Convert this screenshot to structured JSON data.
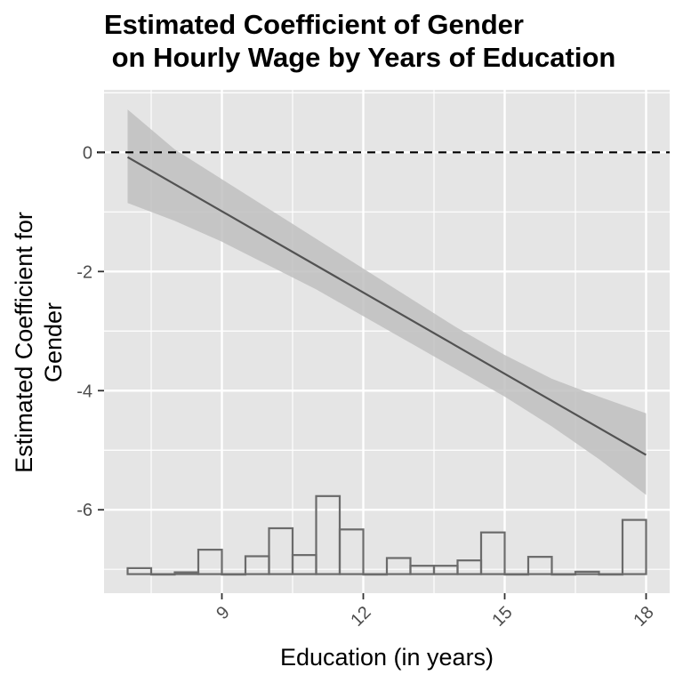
{
  "chart_data": {
    "type": "line",
    "title": "Estimated Coefficient of Gender\n on Hourly Wage by Years of Education",
    "title_lines": [
      "Estimated Coefficient of Gender",
      " on Hourly Wage by Years of Education"
    ],
    "xlabel": "Education (in years)",
    "ylabel_lines": [
      "Estimated Coefficient for",
      "Gender"
    ],
    "xlim": [
      6.5,
      18.5
    ],
    "ylim": [
      -7.4,
      1.05
    ],
    "x_ticks": [
      9,
      12,
      15,
      18
    ],
    "x_tick_labels": [
      "9",
      "12",
      "15",
      "18"
    ],
    "y_ticks": [
      0,
      -2,
      -4,
      -6
    ],
    "y_tick_labels": [
      "0",
      "-2",
      "-4",
      "-6"
    ],
    "grid": true,
    "reference_line": {
      "y": 0,
      "style": "dashed"
    },
    "series": [
      {
        "values": [
          {
            "x": 7,
            "y": -0.08
          },
          {
            "x": 18,
            "y": -5.08
          }
        ]
      }
    ],
    "confidence_band": {
      "x": [
        7,
        8,
        9,
        10,
        11,
        12,
        13,
        14,
        15,
        16,
        17,
        18
      ],
      "lower": [
        -0.85,
        -1.15,
        -1.5,
        -1.9,
        -2.3,
        -2.75,
        -3.2,
        -3.65,
        -4.1,
        -4.6,
        -5.15,
        -5.75
      ],
      "upper": [
        0.72,
        0.05,
        -0.45,
        -0.95,
        -1.45,
        -1.95,
        -2.45,
        -2.95,
        -3.4,
        -3.8,
        -4.1,
        -4.38
      ]
    },
    "histogram": {
      "bin_start": 7,
      "bin_width": 0.5,
      "baseline": -7.08,
      "tops": [
        -6.98,
        -7.08,
        -7.05,
        -6.67,
        -7.08,
        -6.78,
        -6.31,
        -6.76,
        -5.77,
        -6.33,
        -7.08,
        -6.81,
        -6.94,
        -6.94,
        -6.85,
        -6.38,
        -7.08,
        -6.79,
        -7.08,
        -7.04,
        -7.08,
        -6.17
      ]
    },
    "colors": {
      "panel": "#e5e5e5",
      "grid": "#ffffff",
      "band": "#bfbfbf",
      "line": "#525252",
      "histogram_stroke": "#6b6b6b",
      "axis_text": "#4d4d4d"
    }
  }
}
